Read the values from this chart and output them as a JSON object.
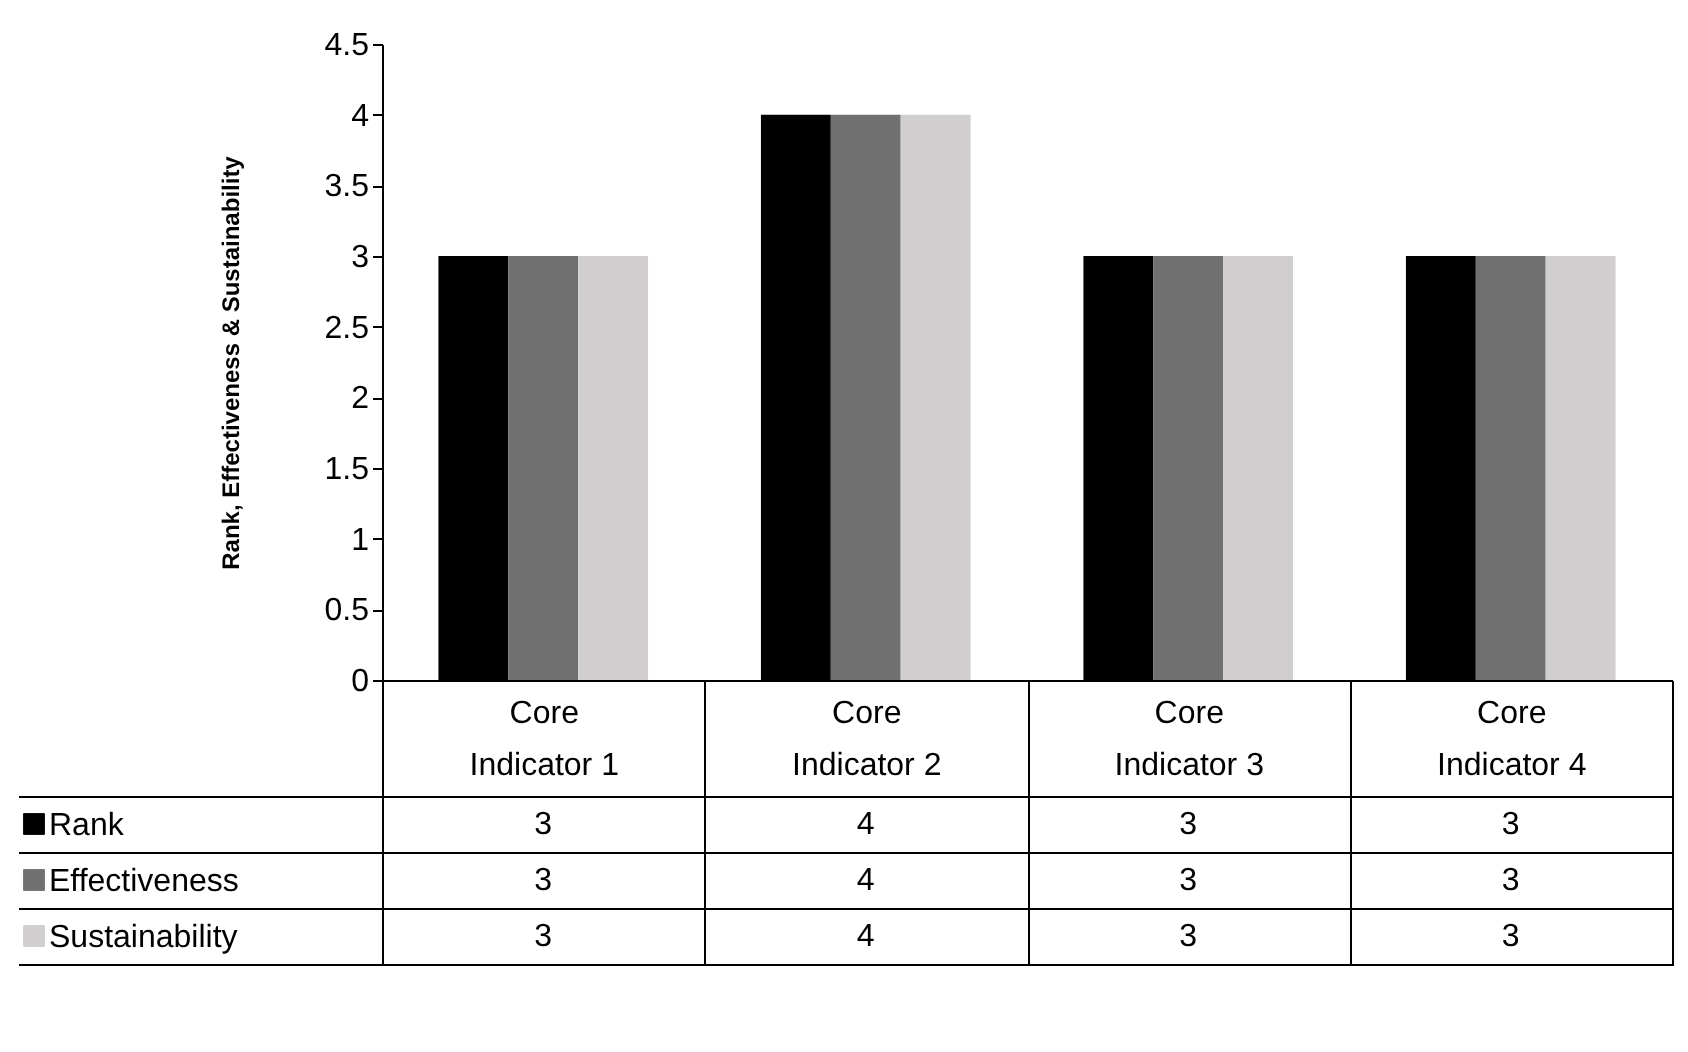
{
  "chart_data": {
    "type": "bar",
    "ylabel": "Rank, Effectiveness & Sustainability",
    "categories": [
      "Core Indicator 1",
      "Core Indicator 2",
      "Core Indicator 3",
      "Core Indicator 4"
    ],
    "series": [
      {
        "name": "Rank",
        "color": "#000000",
        "values": [
          3,
          4,
          3,
          3
        ]
      },
      {
        "name": "Effectiveness",
        "color": "#707070",
        "values": [
          3,
          4,
          3,
          3
        ]
      },
      {
        "name": "Sustainability",
        "color": "#d0cece",
        "values": [
          3,
          4,
          3,
          3
        ]
      }
    ],
    "ylim": [
      0,
      4.5
    ],
    "yticks": [
      0,
      0.5,
      1,
      1.5,
      2,
      2.5,
      3,
      3.5,
      4,
      4.5
    ],
    "legend": "bottom",
    "data_labels": true
  }
}
